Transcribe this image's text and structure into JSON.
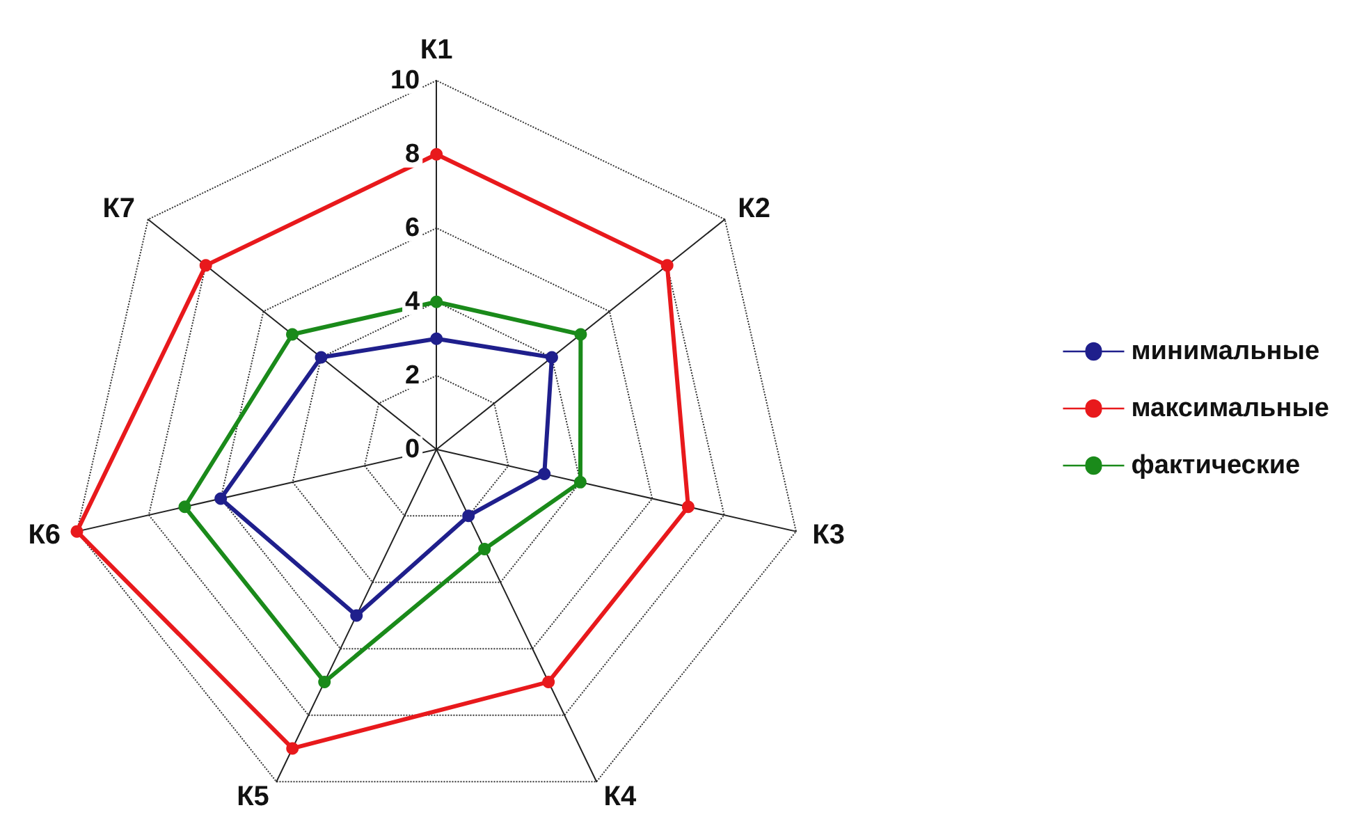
{
  "chart_data": {
    "type": "radar",
    "categories": [
      "К1",
      "К2",
      "К3",
      "К4",
      "К5",
      "К6",
      "К7"
    ],
    "series": [
      {
        "name": "минимальные",
        "color": "#1f1f8c",
        "values": [
          3,
          4,
          3,
          2,
          5,
          6,
          4
        ]
      },
      {
        "name": "максимальные",
        "color": "#e8191c",
        "values": [
          8,
          8,
          7,
          7,
          9,
          10,
          8
        ]
      },
      {
        "name": "фактические",
        "color": "#1a8a1a",
        "values": [
          4,
          5,
          4,
          3,
          7,
          7,
          5
        ]
      }
    ],
    "ylim": [
      0,
      10
    ],
    "yticks": [
      0,
      2,
      4,
      6,
      8,
      10
    ],
    "grid": true,
    "legend": "right",
    "marker": "circle",
    "line_style": "solid"
  }
}
